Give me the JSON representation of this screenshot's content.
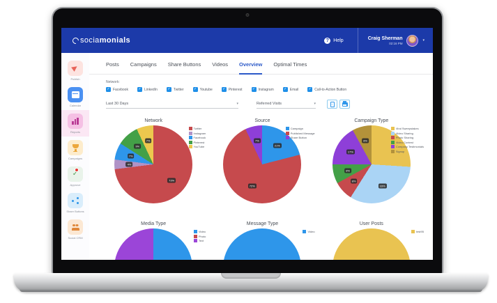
{
  "header": {
    "logo_light": "socia",
    "logo_bold": "monials",
    "help_label": "Help",
    "user": {
      "name": "Craig Sherman",
      "time": "02:16 PM"
    }
  },
  "glyphs": {
    "check": "✓",
    "caret": "▾",
    "help": "?"
  },
  "colors": {
    "header_bg": "#1c3aa9",
    "accent_blue": "#2b59c8",
    "checkbox_blue": "#1f8fe8",
    "active_sidebar_bg": "#fbe7f4"
  },
  "sidebar": {
    "items": [
      {
        "label": "Publish",
        "icon": "paper-plane-icon",
        "tile_bg": "#fde3e0",
        "icon_color": "#e8645a",
        "active": false,
        "badge": false
      },
      {
        "label": "Calendar",
        "icon": "calendar-icon",
        "tile_bg": "#4a90f2",
        "icon_color": "#ffffff",
        "active": false,
        "badge": false
      },
      {
        "label": "Reports",
        "icon": "bar-chart-icon",
        "tile_bg": "#f5c0e4",
        "icon_color": "#b93a94",
        "active": true,
        "badge": false
      },
      {
        "label": "Campaigns",
        "icon": "trophy-icon",
        "tile_bg": "#fdeccc",
        "icon_color": "#eca73c",
        "active": false,
        "badge": false
      },
      {
        "label": "Approve",
        "icon": "approve-icon",
        "tile_bg": "#e9f3ea",
        "icon_color": "#58a05c",
        "active": false,
        "badge": true
      },
      {
        "label": "Share Buttons",
        "icon": "share-icon",
        "tile_bg": "#d9edfb",
        "icon_color": "#2e96ea",
        "active": false,
        "badge": false
      },
      {
        "label": "Social CRM",
        "icon": "people-icon",
        "tile_bg": "#fce8d3",
        "icon_color": "#e0883a",
        "active": false,
        "badge": false
      }
    ]
  },
  "tabs": {
    "items": [
      "Posts",
      "Campaigns",
      "Share Buttons",
      "Videos",
      "Overview",
      "Optimal Times"
    ],
    "active": "Overview"
  },
  "filters": {
    "network_label": "Network:",
    "checkboxes": [
      {
        "label": "Facebook",
        "checked": true
      },
      {
        "label": "LinkedIn",
        "checked": true
      },
      {
        "label": "Twitter",
        "checked": true
      },
      {
        "label": "Youtube",
        "checked": true
      },
      {
        "label": "Pinterest",
        "checked": true
      },
      {
        "label": "Instagram",
        "checked": true
      },
      {
        "label": "Email",
        "checked": true
      },
      {
        "label": "Call-to-Action Button",
        "checked": true
      }
    ],
    "date_range": "Last 30 Days",
    "metric": "Referred Visits"
  },
  "chart_data": [
    {
      "type": "pie",
      "title": "Network",
      "legend_position": "right",
      "slices": [
        {
          "label": "Twitter",
          "value": 73,
          "color": "#c64a4d",
          "pct_label": "73%"
        },
        {
          "label": "Instagram",
          "value": 4,
          "color": "#b093c7",
          "pct_label": "4%"
        },
        {
          "label": "Facebook",
          "value": 7,
          "color": "#2e96ea",
          "pct_label": "7%"
        },
        {
          "label": "Pinterest",
          "value": 9,
          "color": "#43a047",
          "pct_label": "9%"
        },
        {
          "label": "YouTube",
          "value": 7,
          "color": "#ecc84e",
          "pct_label": "7%"
        }
      ]
    },
    {
      "type": "pie",
      "title": "Source",
      "legend_position": "right",
      "slices": [
        {
          "label": "Campaign",
          "value": 21,
          "color": "#2e96ea",
          "pct_label": "21%"
        },
        {
          "label": "Published Message",
          "value": 72,
          "color": "#c64a4d",
          "pct_label": "72%"
        },
        {
          "label": "Share Button",
          "value": 7,
          "color": "#8e3fd8",
          "pct_label": "7%"
        }
      ]
    },
    {
      "type": "pie",
      "title": "Campaign Type",
      "legend_position": "right",
      "slices": [
        {
          "label": "Viral Sweepstakes",
          "value": 26,
          "color": "#e9c351",
          "pct_label": null
        },
        {
          "label": "Video Sharing",
          "value": 33,
          "color": "#aad4f5",
          "pct_label": "33%"
        },
        {
          "label": "Photo Sharing",
          "value": 8,
          "color": "#c64a4d",
          "pct_label": "8%"
        },
        {
          "label": "Video Contest",
          "value": 8,
          "color": "#43a047",
          "pct_label": "8%"
        },
        {
          "label": "Company Testimonials",
          "value": 17,
          "color": "#8e3fd8",
          "pct_label": "17%"
        },
        {
          "label": "Signup",
          "value": 8,
          "color": "#b3923a",
          "pct_label": "8%"
        }
      ]
    },
    {
      "type": "pie",
      "title": "Media Type",
      "legend_position": "right",
      "slices": [
        {
          "label": "Video",
          "value": 50,
          "color": "#2e96ea",
          "pct_label": "50%"
        },
        {
          "label": "Photo",
          "value": 3,
          "color": "#c64a4d",
          "pct_label": null
        },
        {
          "label": "Text",
          "value": 47,
          "color": "#9b45d8",
          "pct_label": null
        }
      ]
    },
    {
      "type": "pie",
      "title": "Message Type",
      "legend_position": "right",
      "slices": [
        {
          "label": "Video",
          "value": 100,
          "color": "#2e96ea",
          "pct_label": null
        }
      ]
    },
    {
      "type": "pie",
      "title": "User Posts",
      "legend_position": "right",
      "slices": [
        {
          "label": "test95",
          "value": 100,
          "color": "#e9c351",
          "pct_label": null
        }
      ]
    }
  ]
}
